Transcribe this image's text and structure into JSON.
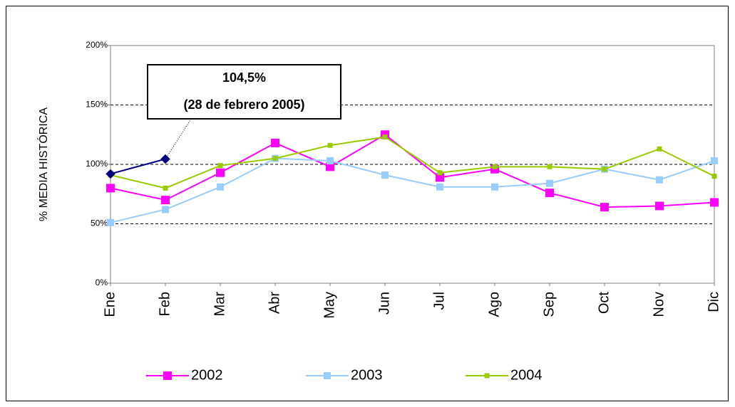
{
  "chart_data": {
    "type": "line",
    "y_axis_label": "% MEDIA HISTÓRICA",
    "categories": [
      "Ene",
      "Feb",
      "Mar",
      "Abr",
      "May",
      "Jun",
      "Jul",
      "Ago",
      "Sep",
      "Oct",
      "Nov",
      "Dic"
    ],
    "series": [
      {
        "name": "2002",
        "color": "#ff00ff",
        "marker": "square-large",
        "values": [
          80,
          70,
          93,
          118,
          98,
          125,
          89,
          96,
          76,
          64,
          65,
          68
        ]
      },
      {
        "name": "2003",
        "color": "#99ccff",
        "marker": "square",
        "values": [
          51,
          62,
          81,
          105,
          103,
          91,
          81,
          81,
          84,
          96,
          87,
          103
        ]
      },
      {
        "name": "2004",
        "color": "#99cc00",
        "marker": "square-small",
        "values": [
          91,
          80,
          99,
          105,
          116,
          123,
          93,
          98,
          98,
          96,
          113,
          90
        ]
      },
      {
        "color": "#000080",
        "marker": "diamond",
        "values": [
          92,
          104.5,
          null,
          null,
          null,
          null,
          null,
          null,
          null,
          null,
          null,
          null
        ]
      }
    ],
    "ylim": [
      0,
      200
    ],
    "yticks": [
      {
        "value": 0,
        "label": "0%"
      },
      {
        "value": 50,
        "label": "50%"
      },
      {
        "value": 100,
        "label": "100%"
      },
      {
        "value": 150,
        "label": "150%"
      },
      {
        "value": 200,
        "label": "200%"
      }
    ],
    "grid": true,
    "legend": "bottom",
    "annotation": {
      "lines": [
        "104,5%",
        "(28 de febrero 2005)"
      ]
    }
  }
}
